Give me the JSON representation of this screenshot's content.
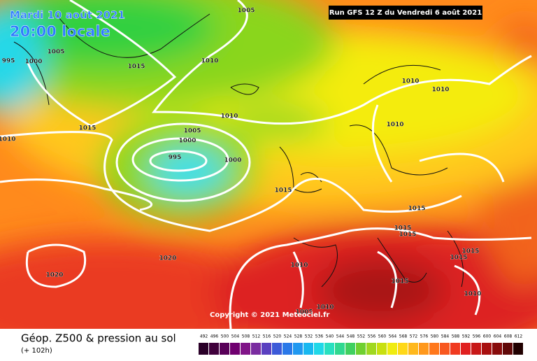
{
  "header": {
    "date": "Mardi 10 août 2021",
    "time": "20:00 locale",
    "run": "Run GFS 12 Z du Vendredi 6 août 2021"
  },
  "copyright": "Copyright © 2021 Meteociel.fr",
  "footer": {
    "title": "Géop. Z500 & pression au sol",
    "lead": "(+ 102h)"
  },
  "scale": [
    492,
    496,
    500,
    504,
    508,
    512,
    516,
    520,
    524,
    528,
    532,
    536,
    540,
    544,
    548,
    552,
    556,
    560,
    564,
    568,
    572,
    576,
    580,
    584,
    588,
    592,
    596,
    600,
    604,
    608,
    612
  ],
  "isobar_labels": [
    995,
    1000,
    1005,
    1005,
    1010,
    1015,
    1015,
    1010,
    1010,
    1005,
    1000,
    995,
    1000,
    1015,
    1020,
    1020,
    1010,
    1010,
    1010,
    1015,
    1015,
    1015,
    1015,
    1015,
    1010,
    1015,
    1010,
    1010,
    1005
  ]
}
